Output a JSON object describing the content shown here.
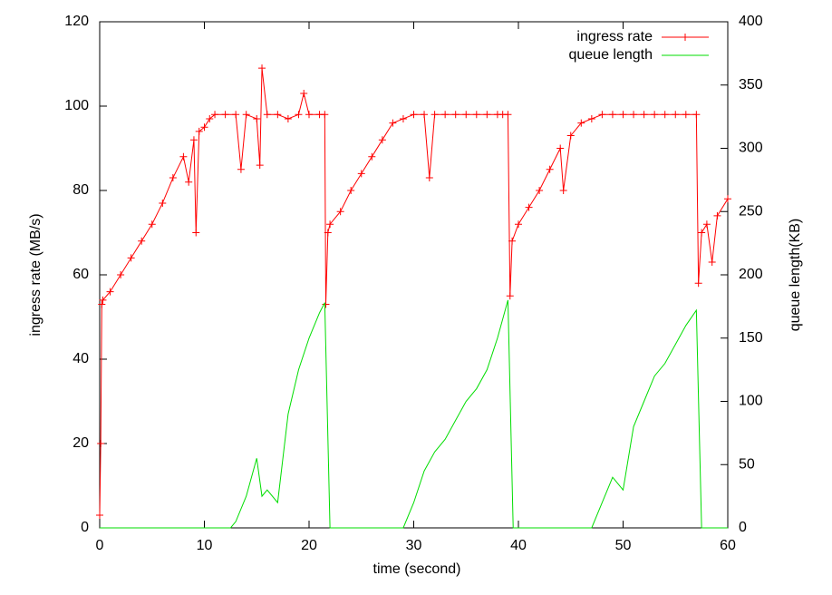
{
  "chart_data": {
    "type": "line",
    "xlabel": "time (second)",
    "ylabel": "ingress rate (MB/s)",
    "y2label": "queue length(KB)",
    "xlim": [
      0,
      60
    ],
    "xticks": [
      0,
      10,
      20,
      30,
      40,
      50,
      60
    ],
    "ylim": [
      0,
      120
    ],
    "yticks": [
      0,
      20,
      40,
      60,
      80,
      100,
      120
    ],
    "y2lim": [
      0,
      400
    ],
    "y2ticks": [
      0,
      50,
      100,
      150,
      200,
      250,
      300,
      350,
      400
    ],
    "legend": "upper right",
    "series": [
      {
        "name": "ingress rate",
        "color": "#ff0000",
        "markers": true,
        "x": [
          0,
          0.1,
          0.2,
          0.3,
          1,
          2,
          3,
          4,
          5,
          6,
          7,
          8,
          8.5,
          9,
          9.2,
          9.5,
          10,
          10.5,
          11,
          12,
          13,
          13.5,
          14,
          15,
          15.3,
          15.5,
          16,
          17,
          18,
          19,
          19.5,
          20,
          21,
          21.5,
          21.6,
          21.8,
          22,
          23,
          24,
          25,
          26,
          27,
          28,
          29,
          30,
          31,
          31.5,
          32,
          33,
          34,
          35,
          36,
          37,
          38,
          38.5,
          39,
          39.2,
          39.4,
          40,
          41,
          42,
          43,
          44,
          44.3,
          45,
          46,
          47,
          48,
          49,
          50,
          51,
          52,
          53,
          54,
          55,
          56,
          57,
          57.2,
          57.5,
          58,
          58.5,
          59,
          60
        ],
        "values": [
          3,
          20,
          53,
          54,
          56,
          60,
          64,
          68,
          72,
          77,
          83,
          88,
          82,
          92,
          70,
          94,
          95,
          97,
          98,
          98,
          98,
          85,
          98,
          97,
          86,
          109,
          98,
          98,
          97,
          98,
          103,
          98,
          98,
          98,
          53,
          70,
          72,
          75,
          80,
          84,
          88,
          92,
          96,
          97,
          98,
          98,
          83,
          98,
          98,
          98,
          98,
          98,
          98,
          98,
          98,
          98,
          55,
          68,
          72,
          76,
          80,
          85,
          90,
          80,
          93,
          96,
          97,
          98,
          98,
          98,
          98,
          98,
          98,
          98,
          98,
          98,
          98,
          58,
          70,
          72,
          63,
          74,
          78
        ]
      },
      {
        "name": "queue length",
        "color": "#00dd00",
        "axis": "y2",
        "markers": false,
        "x": [
          0,
          12.5,
          13,
          14,
          15,
          15.5,
          16,
          17,
          18,
          19,
          20,
          21,
          21.5,
          22,
          29,
          30,
          31,
          32,
          33,
          34,
          35,
          36,
          37,
          38,
          39,
          39.5,
          47,
          48,
          49,
          50,
          51,
          52,
          53,
          54,
          55,
          56,
          57,
          57.5,
          60
        ],
        "values": [
          0,
          0,
          5,
          25,
          55,
          25,
          30,
          20,
          90,
          125,
          150,
          170,
          178,
          0,
          0,
          20,
          45,
          60,
          70,
          85,
          100,
          110,
          125,
          150,
          180,
          0,
          0,
          20,
          40,
          30,
          80,
          100,
          120,
          130,
          145,
          160,
          172,
          0,
          0
        ]
      }
    ]
  }
}
